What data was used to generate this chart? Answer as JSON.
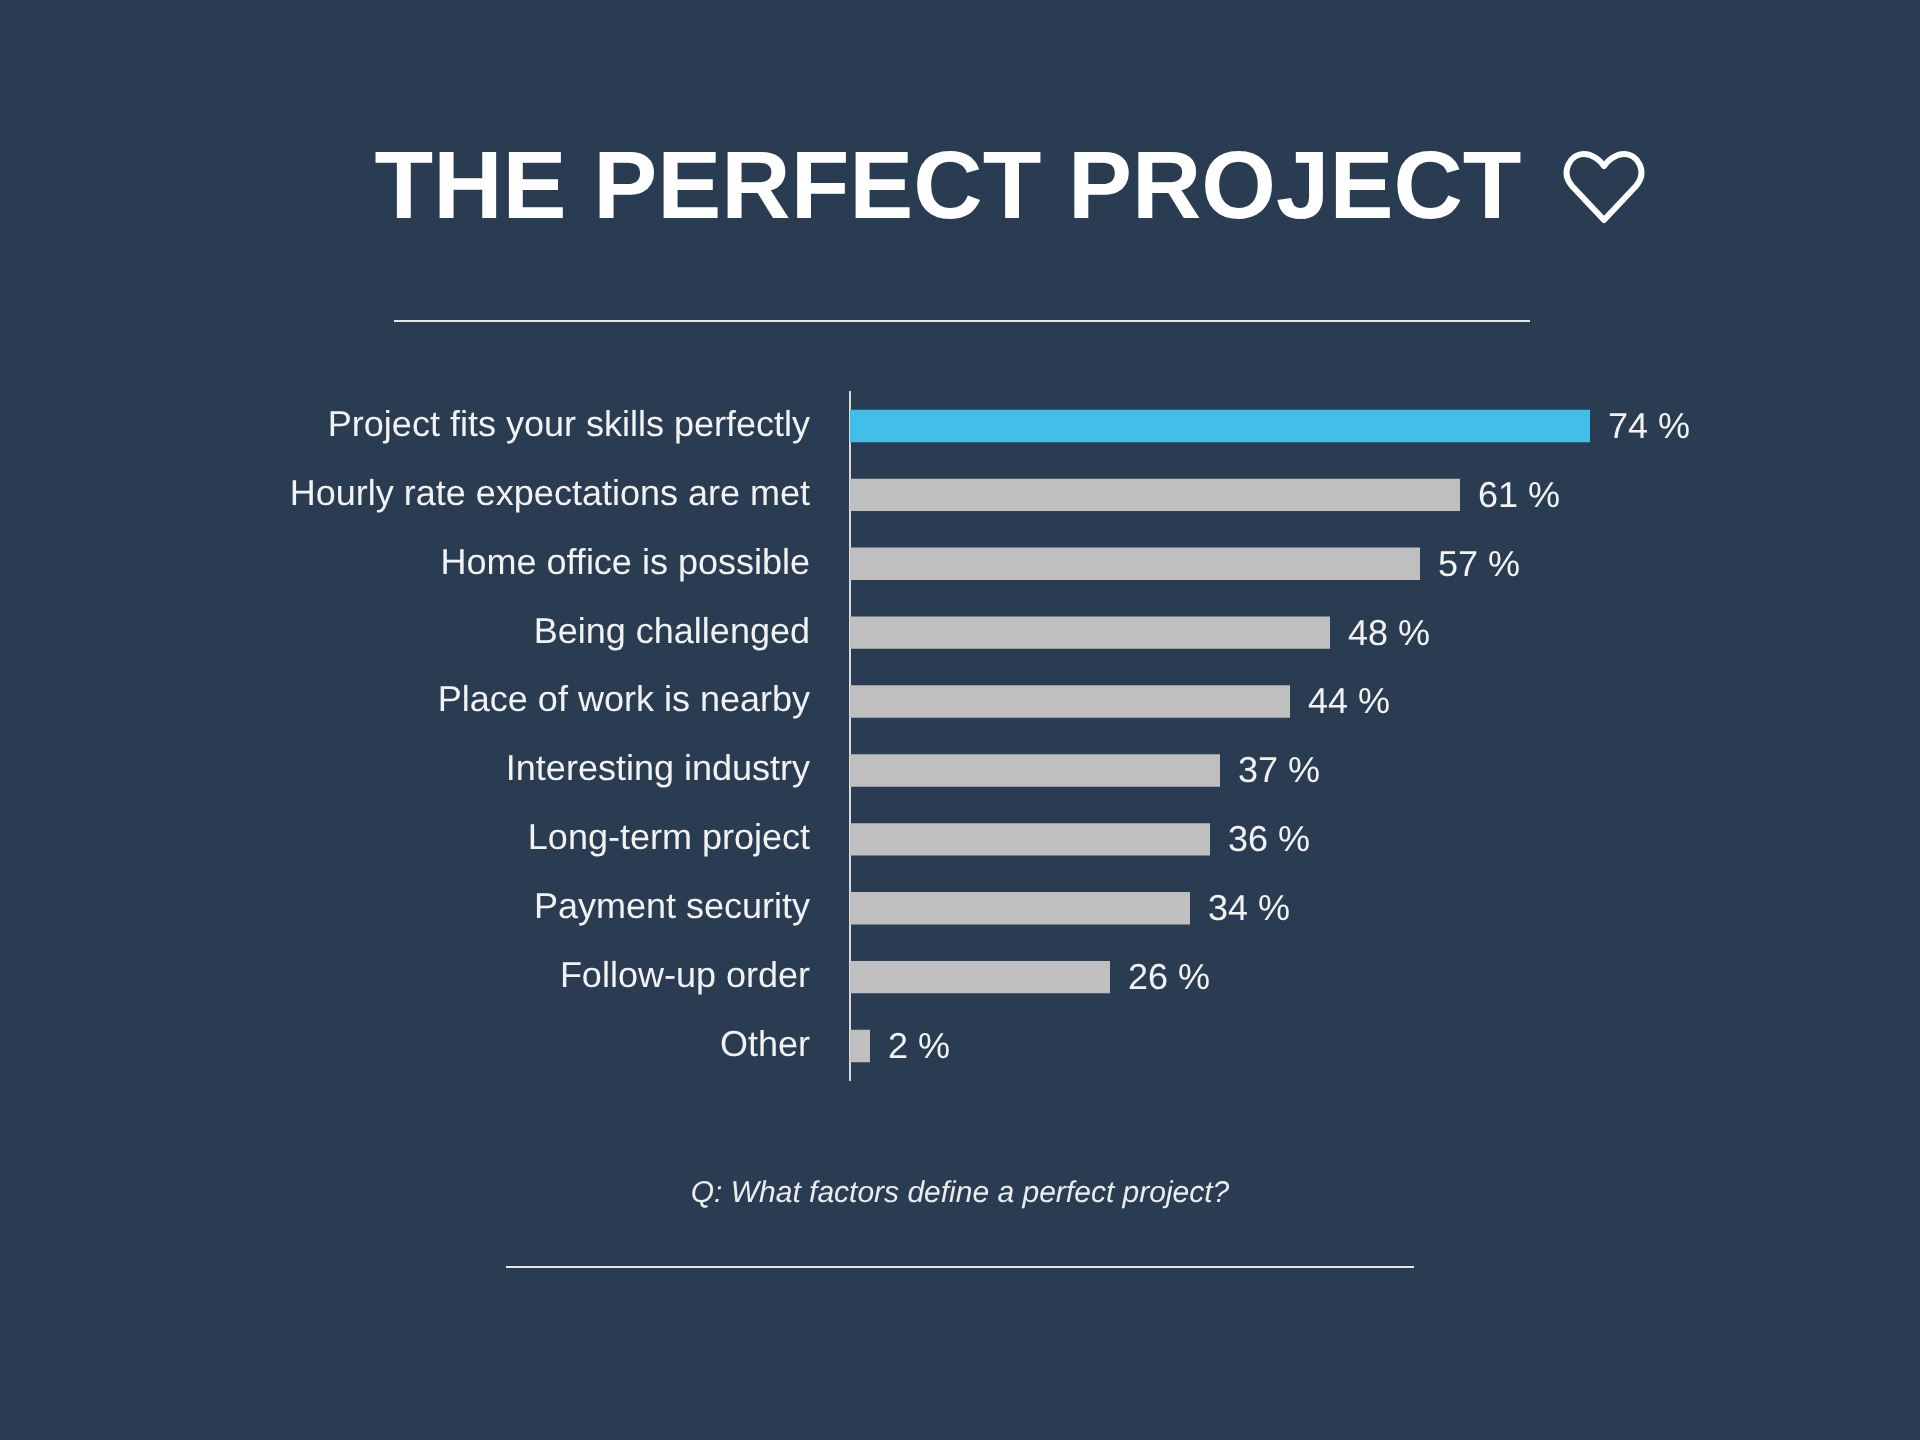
{
  "chart_data": {
    "type": "bar",
    "orientation": "horizontal",
    "title": "THE PERFECT PROJECT",
    "categories": [
      "Project fits your skills perfectly",
      "Hourly rate expectations are met",
      "Home office is possible",
      "Being challenged",
      "Place of work is nearby",
      "Interesting industry",
      "Long-term project",
      "Payment security",
      "Follow-up order",
      "Other"
    ],
    "values": [
      74,
      61,
      57,
      48,
      44,
      37,
      36,
      34,
      26,
      2
    ],
    "colors": [
      "#41bfe9",
      "#bfbfbf",
      "#bfbfbf",
      "#bfbfbf",
      "#bfbfbf",
      "#bfbfbf",
      "#bfbfbf",
      "#bfbfbf",
      "#bfbfbf",
      "#bfbfbf"
    ],
    "value_labels": [
      "74 %",
      "61 %",
      "57 %",
      "48 %",
      "44 %",
      "37 %",
      "36 %",
      "34 %",
      "26 %",
      "2 %"
    ],
    "tick_labels": "y",
    "grid": false,
    "legend": false,
    "annotations": [
      "Q: What factors define a perfect project?"
    ]
  }
}
